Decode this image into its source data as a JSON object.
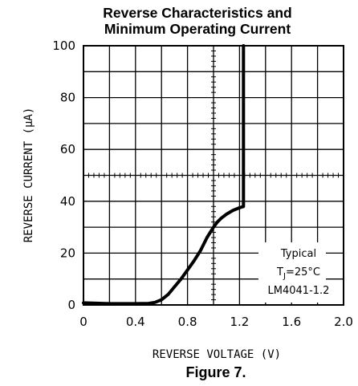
{
  "chart_data": {
    "type": "line",
    "title_line1": "Reverse Characteristics and",
    "title_line2": "Minimum Operating Current",
    "xlabel": "REVERSE VOLTAGE (V)",
    "ylabel": "REVERSE CURRENT (µA)",
    "xlim": [
      0,
      2.0
    ],
    "ylim": [
      0,
      100
    ],
    "x_ticks": [
      "0",
      "0.4",
      "0.8",
      "1.2",
      "1.6",
      "2.0"
    ],
    "y_ticks": [
      "0",
      "20",
      "40",
      "60",
      "80",
      "100"
    ],
    "grid": true,
    "series": [
      {
        "x": [
          0.0,
          0.2,
          0.4,
          0.5,
          0.55,
          0.6,
          0.65,
          0.7,
          0.75,
          0.8,
          0.85,
          0.9,
          0.95,
          1.0,
          1.03,
          1.06,
          1.1,
          1.15,
          1.2,
          1.23,
          1.23,
          1.23
        ],
        "y": [
          0.8,
          0.5,
          0.5,
          0.6,
          1.0,
          2.0,
          4.0,
          7.0,
          10.0,
          13.5,
          17.0,
          21.0,
          26.0,
          30.0,
          32.0,
          33.5,
          35.0,
          36.5,
          37.5,
          38.0,
          60.0,
          100.0
        ]
      }
    ],
    "annotation": {
      "line1": "Typical",
      "line2_prefix": "T",
      "line2_sub": "J",
      "line2_suffix": "=25°C",
      "line3": "LM4041-1.2"
    },
    "figure_label": "Figure 7."
  }
}
